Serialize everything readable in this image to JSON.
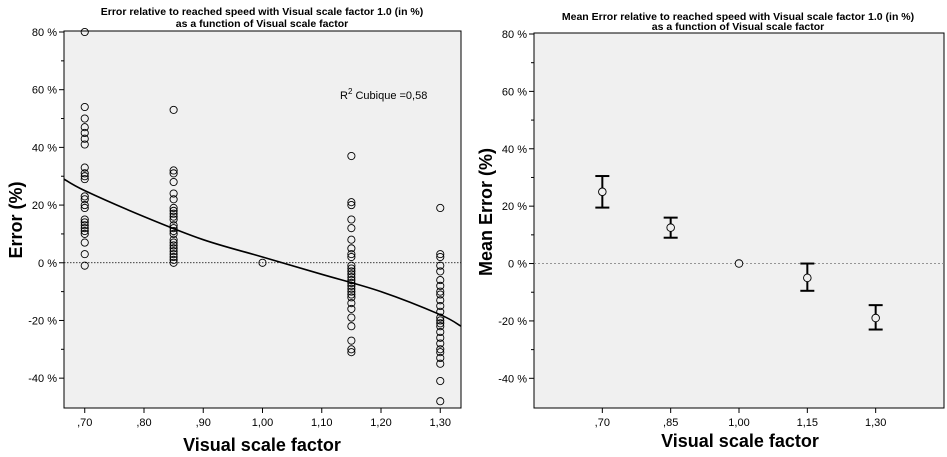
{
  "chart_data": [
    {
      "type": "scatter",
      "title": "Error relative to reached speed with Visual scale factor 1.0 (in %)",
      "subtitle": "as a function of Visual scale factor",
      "xlabel": "Visual scale factor",
      "ylabel": "Error (%)",
      "xlim": [
        0.665,
        1.335
      ],
      "ylim": [
        -50,
        80
      ],
      "x_ticks": [
        0.7,
        0.8,
        0.9,
        1.0,
        1.1,
        1.2,
        1.3
      ],
      "x_tick_labels": [
        ",70",
        ",80",
        ",90",
        "1,00",
        "1,10",
        "1,20",
        "1,30"
      ],
      "y_ticks": [
        -40,
        -20,
        0,
        20,
        40,
        60,
        80
      ],
      "y_tick_labels": [
        "-40 %",
        "-20 %",
        "0 %",
        "20 %",
        "40 %",
        "60 %",
        "80 %"
      ],
      "reference_line_y": 0,
      "annotation": {
        "prefix": "R",
        "sup": "2",
        "text": " Cubique =0,58"
      },
      "fit": {
        "type": "cubic",
        "x": [
          0.665,
          0.7,
          0.8,
          0.9,
          1.0,
          1.1,
          1.2,
          1.3,
          1.335
        ],
        "y": [
          29,
          25,
          16,
          8,
          2,
          -4,
          -10,
          -18,
          -22
        ]
      },
      "series": [
        {
          "x": 0.7,
          "values": [
            80,
            54,
            50,
            47,
            45,
            43,
            41,
            33,
            31,
            30,
            29,
            23,
            22,
            20,
            19,
            15,
            14,
            13,
            12,
            11,
            10,
            7,
            3,
            -1
          ]
        },
        {
          "x": 0.85,
          "values": [
            53,
            32,
            31,
            28,
            24,
            22,
            19,
            18,
            17,
            16,
            15,
            13,
            12,
            11,
            10,
            8,
            7,
            6,
            5,
            4,
            3,
            2,
            1,
            0
          ]
        },
        {
          "x": 1.0,
          "values": [
            0
          ]
        },
        {
          "x": 1.15,
          "values": [
            37,
            21,
            20,
            15,
            12,
            8,
            5,
            3,
            2,
            -1,
            -2,
            -3,
            -4,
            -5,
            -6,
            -7,
            -8,
            -9,
            -10,
            -11,
            -12,
            -14,
            -16,
            -19,
            -22,
            -27,
            -30,
            -31
          ]
        },
        {
          "x": 1.3,
          "values": [
            19,
            3,
            2,
            -1,
            -3,
            -6,
            -8,
            -10,
            -11,
            -13,
            -15,
            -17,
            -19,
            -20,
            -21,
            -22,
            -24,
            -26,
            -28,
            -30,
            -31,
            -33,
            -35,
            -41,
            -48
          ]
        }
      ]
    },
    {
      "type": "errorbar",
      "title": "Mean Error relative to reached speed with Visual scale factor 1.0 (in %)",
      "subtitle": "as a function of Visual scale factor",
      "xlabel": "Visual scale factor",
      "ylabel": "Mean Error (%)",
      "ylim": [
        -50,
        80
      ],
      "categories": [
        ",70",
        ",85",
        "1,00",
        "1,15",
        "1,30"
      ],
      "y_ticks": [
        -40,
        -20,
        0,
        20,
        40,
        60,
        80
      ],
      "y_tick_labels": [
        "-40 %",
        "-20 %",
        "0 %",
        "20 %",
        "40 %",
        "60 %",
        "80 %"
      ],
      "reference_line_y": 0,
      "mean": [
        25,
        12.5,
        0,
        -5,
        -19
      ],
      "lower": [
        19.5,
        9,
        0,
        -9.5,
        -23
      ],
      "upper": [
        30.5,
        16,
        0,
        0,
        -14.5
      ]
    }
  ]
}
